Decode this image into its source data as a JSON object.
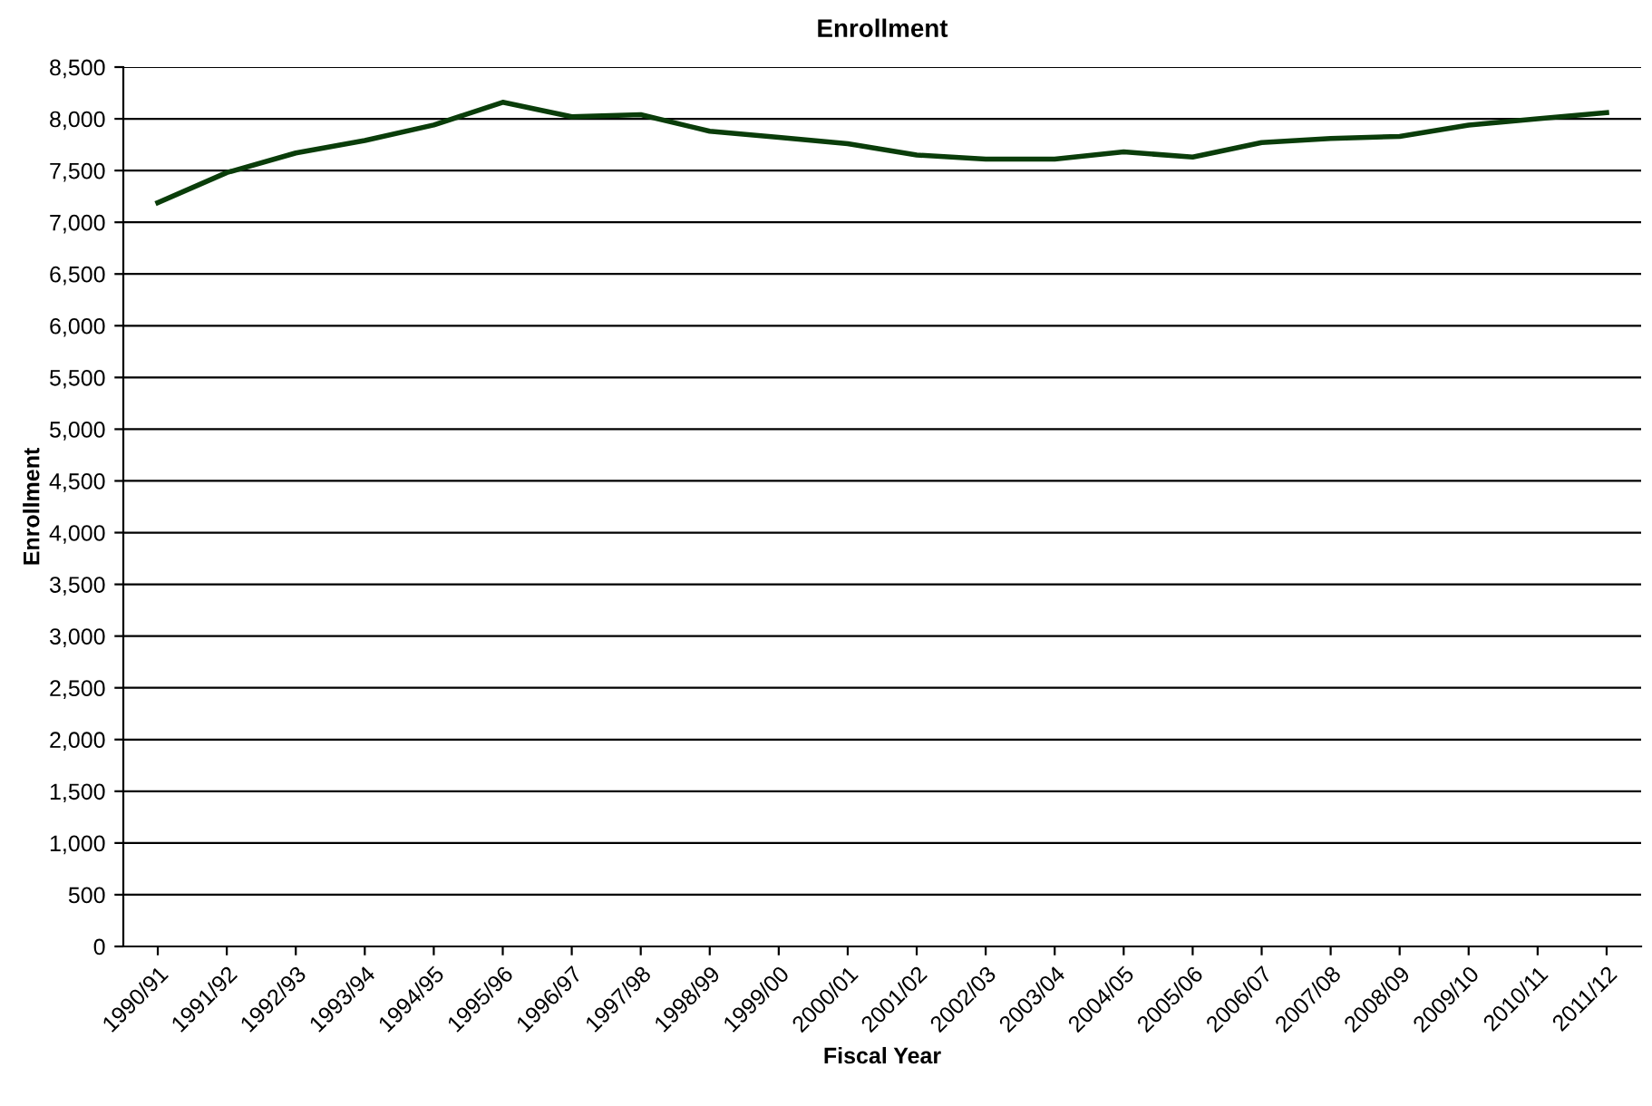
{
  "chart_data": {
    "type": "line",
    "title": "Enrollment",
    "xlabel": "Fiscal Year",
    "ylabel": "Enrollment",
    "categories": [
      "1990/91",
      "1991/92",
      "1992/93",
      "1993/94",
      "1994/95",
      "1995/96",
      "1996/97",
      "1997/98",
      "1998/99",
      "1999/00",
      "2000/01",
      "2001/02",
      "2002/03",
      "2003/04",
      "2004/05",
      "2005/06",
      "2006/07",
      "2007/08",
      "2008/09",
      "2009/10",
      "2010/11",
      "2011/12"
    ],
    "series": [
      {
        "color": "#0a3d0a",
        "values": [
          7190,
          7480,
          7670,
          7790,
          7940,
          8160,
          8020,
          8040,
          7880,
          7820,
          7760,
          7650,
          7610,
          7610,
          7680,
          7630,
          7770,
          7810,
          7830,
          7940,
          8000,
          8060
        ]
      }
    ],
    "ylim": [
      0,
      8500
    ],
    "yticks": [
      {
        "value": 0,
        "label": "0"
      },
      {
        "value": 500,
        "label": "500"
      },
      {
        "value": 1000,
        "label": "1,000"
      },
      {
        "value": 1500,
        "label": "1,500"
      },
      {
        "value": 2000,
        "label": "2,000"
      },
      {
        "value": 2500,
        "label": "2,500"
      },
      {
        "value": 3000,
        "label": "3,000"
      },
      {
        "value": 3500,
        "label": "3,500"
      },
      {
        "value": 4000,
        "label": "4,000"
      },
      {
        "value": 4500,
        "label": "4,500"
      },
      {
        "value": 5000,
        "label": "5,000"
      },
      {
        "value": 5500,
        "label": "5,500"
      },
      {
        "value": 6000,
        "label": "6,000"
      },
      {
        "value": 6500,
        "label": "6,500"
      },
      {
        "value": 7000,
        "label": "7,000"
      },
      {
        "value": 7500,
        "label": "7,500"
      },
      {
        "value": 8000,
        "label": "8,000"
      },
      {
        "value": 8500,
        "label": "8,500"
      }
    ],
    "grid": "y",
    "marker": "none",
    "line_style": "solid"
  }
}
